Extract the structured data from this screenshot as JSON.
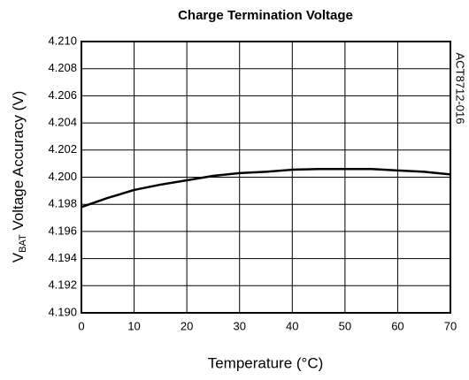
{
  "chart_data": {
    "type": "line",
    "title": "Charge Termination Voltage",
    "xlabel": "Temperature (°C)",
    "ylabel": {
      "main": "V",
      "sub": "BAT",
      "rest": " Voltage Accuracy (V)"
    },
    "annotation": "ACT8712-016",
    "x": [
      0,
      5,
      10,
      15,
      20,
      25,
      30,
      35,
      40,
      45,
      50,
      55,
      60,
      65,
      70
    ],
    "series": [
      {
        "color": "#000000",
        "values": [
          4.1978,
          4.19847,
          4.19906,
          4.19945,
          4.19977,
          4.2001,
          4.2003,
          4.2004,
          4.20055,
          4.2006,
          4.2006,
          4.2006,
          4.2005,
          4.2004,
          4.2002
        ]
      }
    ],
    "xlim": [
      0,
      70
    ],
    "xticks": [
      0,
      10,
      20,
      30,
      40,
      50,
      60,
      70
    ],
    "ylim": [
      4.19,
      4.21
    ],
    "yticks": [
      {
        "value": 4.19,
        "label": "4.190"
      },
      {
        "value": 4.192,
        "label": "4.192"
      },
      {
        "value": 4.194,
        "label": "4.194"
      },
      {
        "value": 4.196,
        "label": "4.196"
      },
      {
        "value": 4.198,
        "label": "4.198"
      },
      {
        "value": 4.2,
        "label": "4.200"
      },
      {
        "value": 4.202,
        "label": "4.202"
      },
      {
        "value": 4.204,
        "label": "4.204"
      },
      {
        "value": 4.206,
        "label": "4.206"
      },
      {
        "value": 4.208,
        "label": "4.208"
      },
      {
        "value": 4.21,
        "label": "4.210"
      }
    ],
    "grid": true
  }
}
